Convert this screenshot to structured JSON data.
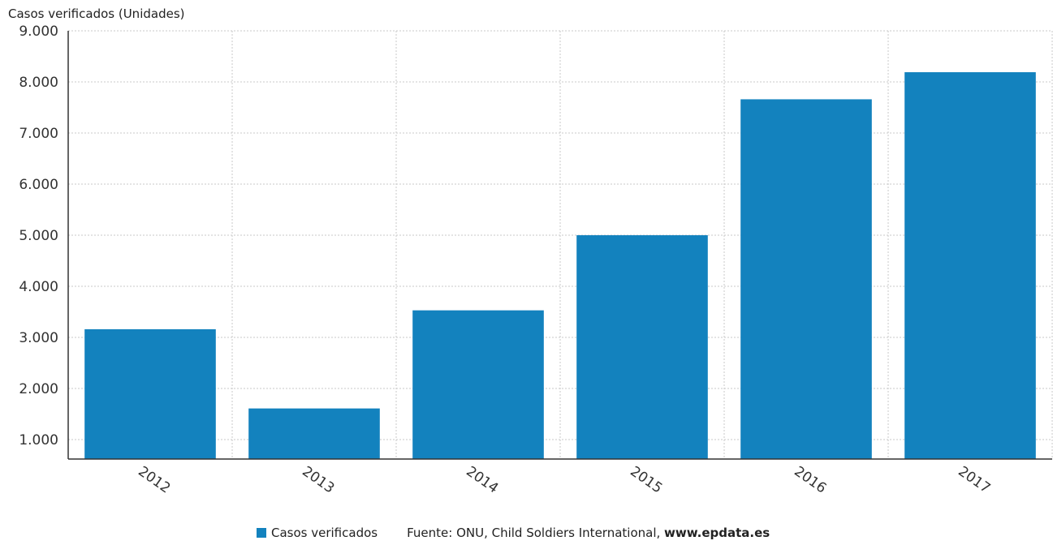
{
  "chart_data": {
    "type": "bar",
    "title": "",
    "ylabel": "Casos verificados (Unidades)",
    "xlabel": "",
    "categories": [
      "2012",
      "2013",
      "2014",
      "2015",
      "2016",
      "2017"
    ],
    "series": [
      {
        "name": "Casos verificados",
        "values": [
          3160,
          1610,
          3530,
          5000,
          7660,
          8190
        ],
        "color": "#1382be"
      }
    ],
    "ylim": [
      620,
      9000
    ],
    "yticks": [
      1000,
      2000,
      3000,
      4000,
      5000,
      6000,
      7000,
      8000,
      9000
    ],
    "ytick_labels": [
      "1.000",
      "2.000",
      "3.000",
      "4.000",
      "5.000",
      "6.000",
      "7.000",
      "8.000",
      "9.000"
    ],
    "grid": true,
    "legend": "bottom"
  },
  "footer": {
    "source_prefix": "Fuente: ONU, Child Soldiers International, ",
    "source_url": "www.epdata.es"
  }
}
